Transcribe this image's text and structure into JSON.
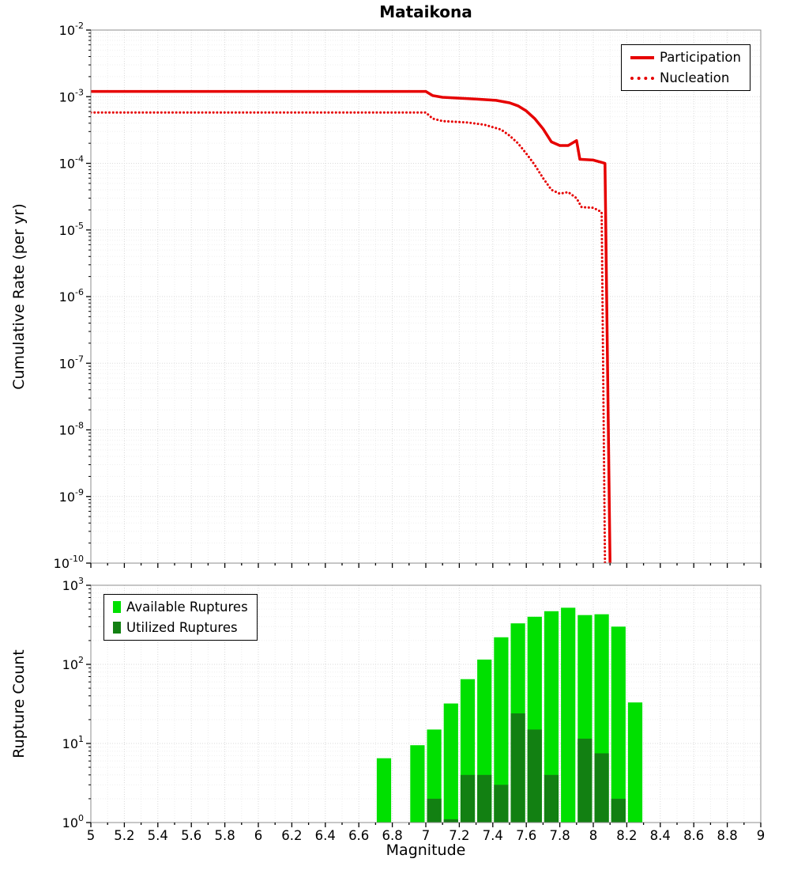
{
  "figure": {
    "title": "Mataikona"
  },
  "chart_data": [
    {
      "type": "line",
      "panel": "top",
      "title": "Mataikona",
      "xlabel": "",
      "ylabel": "Cumulative Rate (per yr)",
      "x_range": [
        5,
        9
      ],
      "y_exponent_range": [
        -10,
        -2
      ],
      "x_tick_labels": [
        "5",
        "5.2",
        "5.4",
        "5.6",
        "5.8",
        "6",
        "6.2",
        "6.4",
        "6.6",
        "6.8",
        "7",
        "7.2",
        "7.4",
        "7.6",
        "7.8",
        "8",
        "8.2",
        "8.4",
        "8.6",
        "8.8",
        "9"
      ],
      "y_tick_exponents": [
        -2,
        -3,
        -4,
        -5,
        -6,
        -7,
        -8,
        -9,
        -10
      ],
      "grid": true,
      "legend_position": "top-right",
      "series": [
        {
          "name": "Participation",
          "line_style": "solid",
          "color": "#e60000",
          "points": [
            [
              5.0,
              0.0012
            ],
            [
              7.0,
              0.0012
            ],
            [
              7.04,
              0.00104
            ],
            [
              7.1,
              0.00098
            ],
            [
              7.2,
              0.00095
            ],
            [
              7.3,
              0.00092
            ],
            [
              7.42,
              0.00088
            ],
            [
              7.5,
              0.00081
            ],
            [
              7.55,
              0.00073
            ],
            [
              7.6,
              0.00061
            ],
            [
              7.65,
              0.00047
            ],
            [
              7.7,
              0.00033
            ],
            [
              7.75,
              0.00021
            ],
            [
              7.8,
              0.000185
            ],
            [
              7.85,
              0.000185
            ],
            [
              7.9,
              0.00022
            ],
            [
              7.92,
              0.000115
            ],
            [
              8.0,
              0.000112
            ],
            [
              8.07,
              0.0001
            ],
            [
              8.1,
              1e-10
            ]
          ]
        },
        {
          "name": "Nucleation",
          "line_style": "dotted",
          "color": "#e60000",
          "points": [
            [
              5.0,
              0.00058
            ],
            [
              7.0,
              0.00058
            ],
            [
              7.04,
              0.00047
            ],
            [
              7.1,
              0.00043
            ],
            [
              7.25,
              0.00041
            ],
            [
              7.35,
              0.00038
            ],
            [
              7.45,
              0.00032
            ],
            [
              7.5,
              0.00026
            ],
            [
              7.55,
              0.0002
            ],
            [
              7.6,
              0.00014
            ],
            [
              7.65,
              9.5e-05
            ],
            [
              7.7,
              6e-05
            ],
            [
              7.75,
              4e-05
            ],
            [
              7.8,
              3.5e-05
            ],
            [
              7.85,
              3.7e-05
            ],
            [
              7.9,
              3e-05
            ],
            [
              7.93,
              2.2e-05
            ],
            [
              8.0,
              2.15e-05
            ],
            [
              8.05,
              1.85e-05
            ],
            [
              8.07,
              1e-10
            ]
          ]
        }
      ]
    },
    {
      "type": "bar",
      "panel": "bottom",
      "xlabel": "Magnitude",
      "ylabel": "Rupture Count",
      "x_range": [
        5,
        9
      ],
      "y_exponent_range": [
        0,
        3
      ],
      "y_tick_exponents": [
        3,
        2,
        1,
        0
      ],
      "bin_width": 0.1,
      "grid": true,
      "legend_position": "top-left",
      "categories": [
        6.75,
        6.95,
        7.05,
        7.15,
        7.25,
        7.35,
        7.45,
        7.55,
        7.65,
        7.75,
        7.85,
        7.95,
        8.05,
        8.15,
        8.25
      ],
      "series": [
        {
          "name": "Available Ruptures",
          "color": "#00e000",
          "values": [
            6.5,
            9.5,
            15,
            32,
            65,
            115,
            220,
            330,
            400,
            470,
            520,
            420,
            430,
            300,
            33
          ]
        },
        {
          "name": "Utilized Ruptures",
          "color": "#128012",
          "values": [
            null,
            null,
            2,
            1.1,
            4,
            4,
            3,
            24,
            15,
            4,
            null,
            11.5,
            7.5,
            2,
            null
          ]
        }
      ]
    }
  ]
}
